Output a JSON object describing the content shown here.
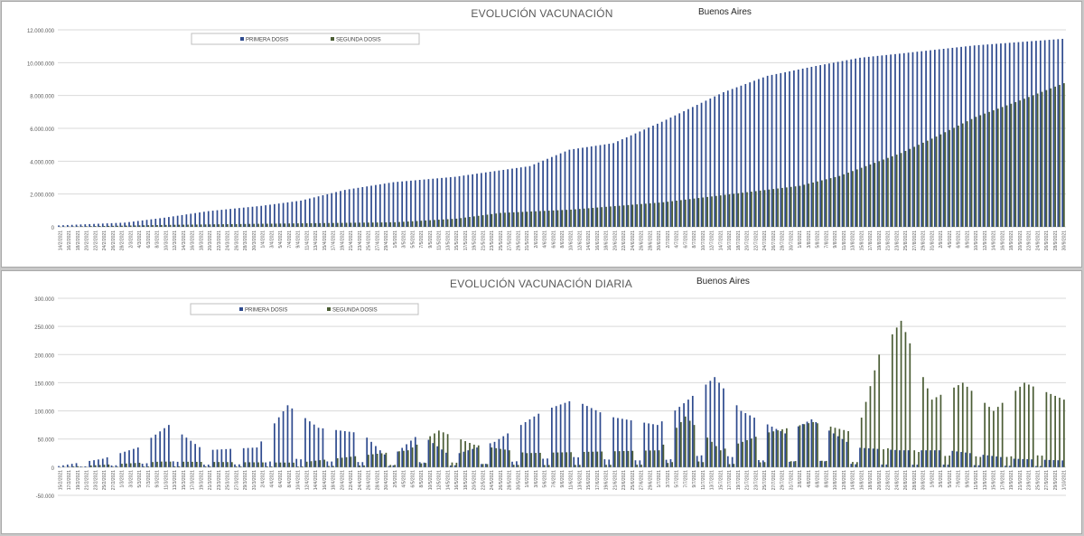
{
  "colors": {
    "primera": "#2e4a8e",
    "segunda": "#4b5d35",
    "grid": "#d9d9d9",
    "axis_text": "#595959"
  },
  "chart_data": [
    {
      "type": "bar",
      "title": "EVOLUCIÓN VACUNACIÓN",
      "subtitle": "Buenos Aires",
      "grid": true,
      "legend_position": "top",
      "ylim": [
        0,
        12000000
      ],
      "yticks": [
        0,
        2000000,
        4000000,
        6000000,
        8000000,
        10000000,
        12000000
      ],
      "ytick_labels": [
        "0",
        "2.000.000",
        "4.000.000",
        "6.000.000",
        "8.000.000",
        "10.000.000",
        "12.000.000"
      ],
      "x_start": "2021-02-14",
      "x_end": "2021-09-30",
      "x_label_every_days": 2,
      "legend": [
        "PRIMERA DOSIS",
        "SEGUNDA DOSIS"
      ],
      "series": [
        {
          "name": "PRIMERA DOSIS",
          "values_keypoints": [
            [
              "2021-02-14",
              90000
            ],
            [
              "2021-03-01",
              260000
            ],
            [
              "2021-03-10",
              560000
            ],
            [
              "2021-03-20",
              960000
            ],
            [
              "2021-04-01",
              1280000
            ],
            [
              "2021-04-10",
              1600000
            ],
            [
              "2021-04-20",
              2250000
            ],
            [
              "2021-05-01",
              2720000
            ],
            [
              "2021-05-15",
              3050000
            ],
            [
              "2021-06-01",
              3700000
            ],
            [
              "2021-06-10",
              4700000
            ],
            [
              "2021-06-20",
              5100000
            ],
            [
              "2021-07-01",
              6400000
            ],
            [
              "2021-07-15",
              8200000
            ],
            [
              "2021-07-25",
              9200000
            ],
            [
              "2021-08-05",
              9800000
            ],
            [
              "2021-08-15",
              10300000
            ],
            [
              "2021-08-24",
              10550000
            ],
            [
              "2021-09-10",
              11050000
            ],
            [
              "2021-09-30",
              11450000
            ]
          ]
        },
        {
          "name": "SEGUNDA DOSIS",
          "values_keypoints": [
            [
              "2021-02-14",
              10000
            ],
            [
              "2021-03-10",
              120000
            ],
            [
              "2021-04-01",
              190000
            ],
            [
              "2021-05-01",
              280000
            ],
            [
              "2021-05-15",
              500000
            ],
            [
              "2021-05-25",
              850000
            ],
            [
              "2021-06-10",
              1050000
            ],
            [
              "2021-07-01",
              1500000
            ],
            [
              "2021-07-15",
              1950000
            ],
            [
              "2021-08-01",
              2500000
            ],
            [
              "2021-08-10",
              3100000
            ],
            [
              "2021-08-24",
              4500000
            ],
            [
              "2021-09-01",
              5500000
            ],
            [
              "2021-09-10",
              6700000
            ],
            [
              "2021-09-20",
              7700000
            ],
            [
              "2021-09-30",
              8750000
            ]
          ]
        }
      ]
    },
    {
      "type": "bar",
      "title": "EVOLUCIÓN VACUNACIÓN DIARIA",
      "subtitle": "Buenos Aires",
      "grid": true,
      "legend_position": "top",
      "ylim": [
        -50000,
        300000
      ],
      "yticks": [
        -50000,
        0,
        50000,
        100000,
        150000,
        200000,
        250000,
        300000
      ],
      "ytick_labels": [
        "-50.000",
        "0",
        "50.000",
        "100.000",
        "150.000",
        "200.000",
        "250.000",
        "300.000"
      ],
      "x_start": "2021-02-15",
      "x_end": "2021-10-01",
      "x_label_every_days": 2,
      "legend": [
        "PRIMERA DOSIS",
        "SEGUNDA DOSIS"
      ],
      "series": [
        {
          "name": "PRIMERA DOSIS",
          "values_keypoints": [
            [
              "2021-02-15",
              2000
            ],
            [
              "2021-02-25",
              15000
            ],
            [
              "2021-03-05",
              35000
            ],
            [
              "2021-03-12",
              75000
            ],
            [
              "2021-03-20",
              30000
            ],
            [
              "2021-04-01",
              35000
            ],
            [
              "2021-04-08",
              110000
            ],
            [
              "2021-04-15",
              70000
            ],
            [
              "2021-04-25",
              60000
            ],
            [
              "2021-05-01",
              15000
            ],
            [
              "2021-05-08",
              60000
            ],
            [
              "2021-05-15",
              20000
            ],
            [
              "2021-05-25",
              45000
            ],
            [
              "2021-06-05",
              100000
            ],
            [
              "2021-06-12",
              120000
            ],
            [
              "2021-06-20",
              90000
            ],
            [
              "2021-07-01",
              75000
            ],
            [
              "2021-07-08",
              120000
            ],
            [
              "2021-07-14",
              160000
            ],
            [
              "2021-07-20",
              100000
            ],
            [
              "2021-07-30",
              60000
            ],
            [
              "2021-08-05",
              85000
            ],
            [
              "2021-08-15",
              35000
            ],
            [
              "2021-08-25",
              30000
            ],
            [
              "2021-09-05",
              30000
            ],
            [
              "2021-09-20",
              15000
            ],
            [
              "2021-10-01",
              12000
            ]
          ]
        },
        {
          "name": "SEGUNDA DOSIS",
          "values_keypoints": [
            [
              "2021-02-15",
              0
            ],
            [
              "2021-03-10",
              10000
            ],
            [
              "2021-04-10",
              8000
            ],
            [
              "2021-05-05",
              30000
            ],
            [
              "2021-05-12",
              65000
            ],
            [
              "2021-05-20",
              40000
            ],
            [
              "2021-06-01",
              25000
            ],
            [
              "2021-07-01",
              30000
            ],
            [
              "2021-07-07",
              90000
            ],
            [
              "2021-07-15",
              30000
            ],
            [
              "2021-07-25",
              60000
            ],
            [
              "2021-08-05",
              80000
            ],
            [
              "2021-08-15",
              60000
            ],
            [
              "2021-08-20",
              200000
            ],
            [
              "2021-08-25",
              260000
            ],
            [
              "2021-09-01",
              120000
            ],
            [
              "2021-09-08",
              150000
            ],
            [
              "2021-09-15",
              100000
            ],
            [
              "2021-09-22",
              150000
            ],
            [
              "2021-10-01",
              120000
            ]
          ]
        }
      ]
    }
  ]
}
